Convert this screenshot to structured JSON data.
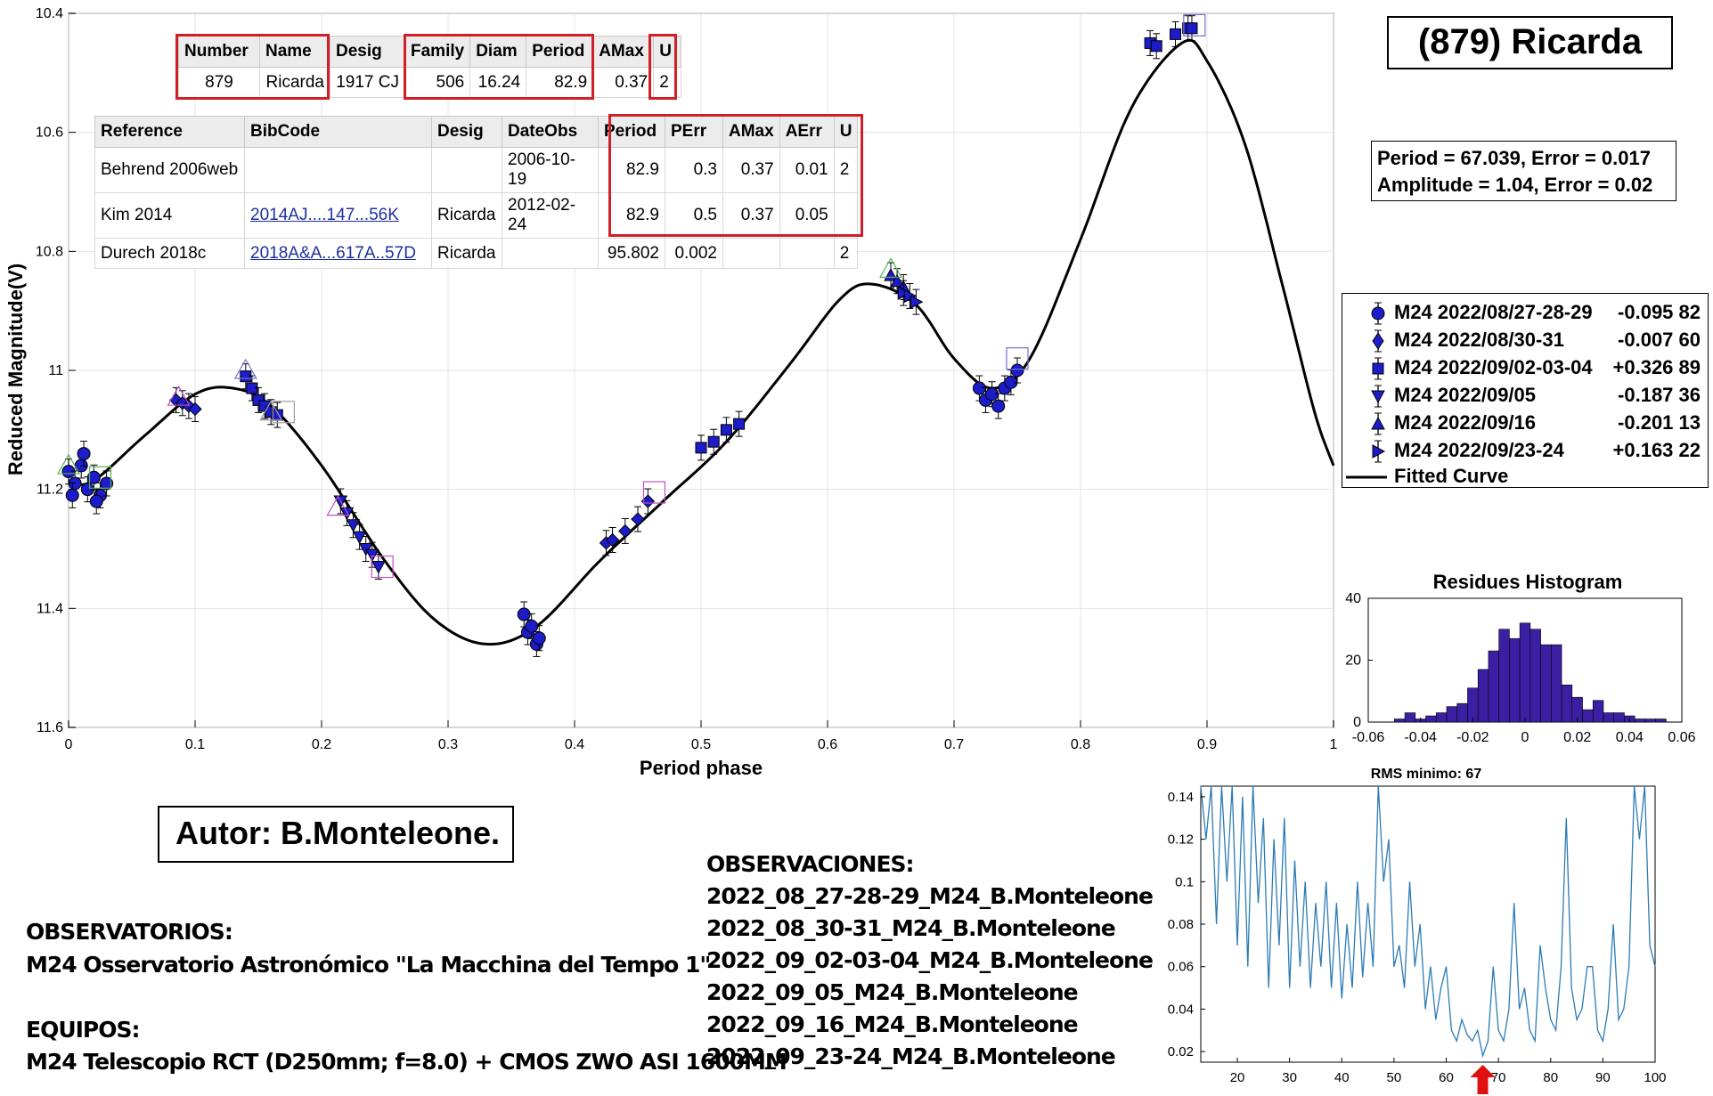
{
  "chart_data": [
    {
      "type": "scatter",
      "xlabel": "Period phase",
      "ylabel": "Reduced Magnitude(V)",
      "xlim": [
        0,
        1
      ],
      "ylim": [
        10.4,
        11.6
      ],
      "y_reversed": true,
      "x_ticks": [
        "0",
        "0.1",
        "0.2",
        "0.3",
        "0.4",
        "0.5",
        "0.6",
        "0.7",
        "0.8",
        "0.9",
        "1"
      ],
      "y_ticks": [
        "10.4",
        "10.6",
        "10.8",
        "11",
        "11.2",
        "11.4",
        "11.6"
      ],
      "grid": true,
      "legend_position": "right",
      "series": [
        {
          "name": "M24 2022/08/27-28-29",
          "offset": "-0.095",
          "count": "82",
          "marker": "circle",
          "points": [
            [
              0.0,
              11.17
            ],
            [
              0.005,
              11.19
            ],
            [
              0.01,
              11.16
            ],
            [
              0.015,
              11.2
            ],
            [
              0.02,
              11.18
            ],
            [
              0.025,
              11.21
            ],
            [
              0.03,
              11.19
            ],
            [
              0.003,
              11.21
            ],
            [
              0.012,
              11.14
            ],
            [
              0.022,
              11.22
            ],
            [
              0.36,
              11.41
            ],
            [
              0.363,
              11.44
            ],
            [
              0.366,
              11.43
            ],
            [
              0.37,
              11.46
            ],
            [
              0.372,
              11.45
            ],
            [
              0.72,
              11.03
            ],
            [
              0.725,
              11.05
            ],
            [
              0.73,
              11.04
            ],
            [
              0.735,
              11.06
            ],
            [
              0.74,
              11.03
            ],
            [
              0.745,
              11.02
            ],
            [
              0.75,
              11.0
            ]
          ]
        },
        {
          "name": "M24 2022/08/30-31",
          "offset": "-0.007",
          "count": "60",
          "marker": "diamond",
          "points": [
            [
              0.085,
              11.05
            ],
            [
              0.09,
              11.055
            ],
            [
              0.095,
              11.06
            ],
            [
              0.1,
              11.065
            ],
            [
              0.425,
              11.29
            ],
            [
              0.43,
              11.285
            ],
            [
              0.44,
              11.27
            ],
            [
              0.45,
              11.25
            ],
            [
              0.458,
              11.22
            ]
          ]
        },
        {
          "name": "M24 2022/09/02-03-04",
          "offset": "+0.326",
          "count": "89",
          "marker": "square",
          "points": [
            [
              0.14,
              11.01
            ],
            [
              0.145,
              11.03
            ],
            [
              0.15,
              11.05
            ],
            [
              0.155,
              11.06
            ],
            [
              0.16,
              11.07
            ],
            [
              0.165,
              11.075
            ],
            [
              0.5,
              11.13
            ],
            [
              0.51,
              11.12
            ],
            [
              0.52,
              11.1
            ],
            [
              0.53,
              11.09
            ],
            [
              0.855,
              10.45
            ],
            [
              0.86,
              10.455
            ],
            [
              0.875,
              10.435
            ],
            [
              0.885,
              10.425
            ],
            [
              0.888,
              10.425
            ]
          ]
        },
        {
          "name": "M24 2022/09/05",
          "offset": "-0.187",
          "count": "36",
          "marker": "triangle-down",
          "points": [
            [
              0.215,
              11.22
            ],
            [
              0.22,
              11.24
            ],
            [
              0.225,
              11.26
            ],
            [
              0.23,
              11.28
            ],
            [
              0.235,
              11.3
            ],
            [
              0.24,
              11.31
            ],
            [
              0.245,
              11.33
            ]
          ]
        },
        {
          "name": "M24 2022/09/16",
          "offset": "-0.201",
          "count": "13",
          "marker": "triangle-up",
          "points": [
            [
              0.65,
              10.84
            ],
            [
              0.655,
              10.85
            ],
            [
              0.66,
              10.86
            ]
          ]
        },
        {
          "name": "M24 2022/09/23-24",
          "offset": "+0.163",
          "count": "22",
          "marker": "triangle-right",
          "points": [
            [
              0.66,
              10.87
            ],
            [
              0.665,
              10.875
            ],
            [
              0.67,
              10.885
            ]
          ]
        }
      ],
      "fitted_curve": {
        "name": "Fitted Curve",
        "period": "67.039",
        "period_error": "0.017",
        "amplitude": "1.04",
        "amplitude_error": "0.02"
      }
    },
    {
      "type": "bar",
      "title": "Residues Histogram",
      "xlim": [
        -0.06,
        0.06
      ],
      "ylim": [
        0,
        40
      ],
      "x_ticks": [
        "-0.06",
        "-0.04",
        "-0.02",
        "0",
        "0.02",
        "0.04",
        "0.06"
      ],
      "y_ticks": [
        "0",
        "20",
        "40"
      ],
      "bin_width": 0.004,
      "bin_starts": [
        -0.05,
        -0.046,
        -0.042,
        -0.038,
        -0.034,
        -0.03,
        -0.026,
        -0.022,
        -0.018,
        -0.014,
        -0.01,
        -0.006,
        -0.002,
        0.002,
        0.006,
        0.01,
        0.014,
        0.018,
        0.022,
        0.026,
        0.03,
        0.034,
        0.038,
        0.042,
        0.046,
        0.05
      ],
      "values": [
        1,
        3,
        1,
        2,
        3,
        5,
        6,
        11,
        17,
        23,
        30,
        27,
        32,
        30,
        25,
        25,
        12,
        8,
        4,
        7,
        3,
        3,
        2,
        1,
        1,
        1
      ],
      "color": "#3b1fa3"
    },
    {
      "type": "line",
      "title": "RMS minimo: 67",
      "xlim": [
        13,
        100
      ],
      "ylim": [
        0.015,
        0.145
      ],
      "x_ticks": [
        "20",
        "30",
        "40",
        "50",
        "60",
        "70",
        "80",
        "90",
        "100"
      ],
      "y_ticks": [
        "0.02",
        "0.04",
        "0.06",
        "0.08",
        "0.1",
        "0.12",
        "0.14"
      ],
      "minimum_marker_x": 67,
      "color": "#2c7bb6",
      "x": [
        13,
        14,
        15,
        16,
        17,
        18,
        19,
        20,
        21,
        22,
        23,
        24,
        25,
        26,
        27,
        28,
        29,
        30,
        31,
        32,
        33,
        34,
        35,
        36,
        37,
        38,
        39,
        40,
        41,
        42,
        43,
        44,
        45,
        46,
        47,
        48,
        49,
        50,
        51,
        52,
        53,
        54,
        55,
        56,
        57,
        58,
        59,
        60,
        61,
        62,
        63,
        64,
        65,
        66,
        67,
        68,
        69,
        70,
        71,
        72,
        73,
        74,
        75,
        76,
        77,
        78,
        79,
        80,
        81,
        82,
        83,
        84,
        85,
        86,
        87,
        88,
        89,
        90,
        91,
        92,
        93,
        94,
        95,
        96,
        97,
        98,
        99,
        100
      ],
      "y": [
        0.145,
        0.12,
        0.145,
        0.08,
        0.145,
        0.1,
        0.145,
        0.07,
        0.14,
        0.06,
        0.145,
        0.09,
        0.13,
        0.05,
        0.12,
        0.07,
        0.13,
        0.05,
        0.11,
        0.06,
        0.1,
        0.05,
        0.09,
        0.06,
        0.1,
        0.05,
        0.09,
        0.045,
        0.08,
        0.05,
        0.1,
        0.055,
        0.09,
        0.06,
        0.145,
        0.1,
        0.12,
        0.06,
        0.07,
        0.05,
        0.1,
        0.06,
        0.08,
        0.04,
        0.06,
        0.035,
        0.05,
        0.06,
        0.03,
        0.025,
        0.035,
        0.028,
        0.025,
        0.03,
        0.018,
        0.025,
        0.06,
        0.03,
        0.025,
        0.04,
        0.09,
        0.04,
        0.05,
        0.03,
        0.025,
        0.07,
        0.05,
        0.035,
        0.03,
        0.06,
        0.13,
        0.05,
        0.035,
        0.04,
        0.06,
        0.06,
        0.03,
        0.025,
        0.04,
        0.08,
        0.035,
        0.04,
        0.06,
        0.145,
        0.12,
        0.145,
        0.07,
        0.06
      ]
    }
  ],
  "title": "(879) Ricarda",
  "fit_summary": {
    "line1": "Period =  67.039, Error = 0.017",
    "line2": "Amplitude = 1.04, Error = 0.02"
  },
  "legend": {
    "entries": [
      {
        "name": "M24 2022/08/27-28-29",
        "value": "-0.095 82"
      },
      {
        "name": "M24 2022/08/30-31",
        "value": "-0.007 60"
      },
      {
        "name": "M24 2022/09/02-03-04",
        "value": "+0.326 89"
      },
      {
        "name": "M24 2022/09/05",
        "value": "-0.187 36"
      },
      {
        "name": "M24 2022/09/16",
        "value": "-0.201 13"
      },
      {
        "name": "M24 2022/09/23-24",
        "value": "+0.163 22"
      }
    ],
    "curve_label": "Fitted Curve"
  },
  "asteroid_table": {
    "headers": [
      "Number",
      "Name",
      "Desig",
      "Family",
      "Diam",
      "Period",
      "AMax",
      "U"
    ],
    "row": [
      "879",
      "Ricarda",
      "1917 CJ",
      "506",
      "16.24",
      "82.9",
      "0.37",
      "2"
    ]
  },
  "reference_table": {
    "headers": [
      "Reference",
      "BibCode",
      "Desig",
      "DateObs",
      "Period",
      "PErr",
      "AMax",
      "AErr",
      "U"
    ],
    "rows": [
      [
        "Behrend 2006web",
        "",
        "",
        "2006-10-19",
        "82.9",
        "0.3",
        "0.37",
        "0.01",
        "2"
      ],
      [
        "Kim 2014",
        "2014AJ....147...56K",
        "Ricarda",
        "2012-02-24",
        "82.9",
        "0.5",
        "0.37",
        "0.05",
        ""
      ],
      [
        "Durech 2018c",
        "2018A&A...617A..57D",
        "Ricarda",
        "",
        "95.802",
        "0.002",
        "",
        "",
        "2"
      ]
    ]
  },
  "author": "Autor: B.Monteleone.",
  "observatorios": {
    "heading": "OBSERVATORIOS:",
    "text": "M24 Osservatorio Astronómico \"La Macchina del Tempo 1\""
  },
  "equipos": {
    "heading": "EQUIPOS:",
    "text": "M24 Telescopio RCT (D250mm; f=8.0) + CMOS ZWO ASI 1600MM"
  },
  "observaciones": {
    "heading": "OBSERVACIONES:",
    "items": [
      "2022_08_27-28-29_M24_B.Monteleone",
      "2022_08_30-31_M24_B.Monteleone",
      "2022_09_02-03-04_M24_B.Monteleone",
      "2022_09_05_M24_B.Monteleone",
      "2022_09_16_M24_B.Monteleone",
      "2022_09_23-24_M24_B.Monteleone"
    ]
  },
  "colors": {
    "marker": "#1c1cc8",
    "highlight": "#d21e28",
    "curve": "#000000",
    "histogram": "#3b1fa3",
    "rms_line": "#2c7bb6",
    "arrow": "#e01010"
  }
}
